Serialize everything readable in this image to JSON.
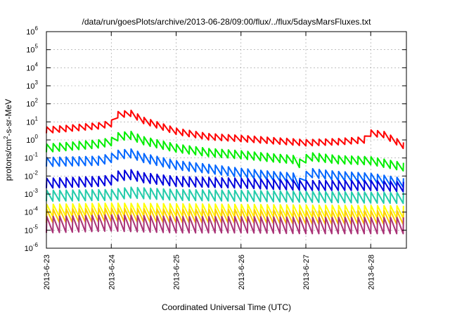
{
  "chart_data": {
    "type": "line",
    "title": "/data/run/goesPlots/archive/2013-06-28/09:00/flux/../flux/5daysMarsFluxes.txt",
    "xlabel": "Coordinated Universal Time (UTC)",
    "ylabel": "protons/cm²-s-sr-MeV",
    "ylabel_base": "protons/cm",
    "ylabel_sup": "2",
    "ylabel_rest": "-s-sr-MeV",
    "y_scale": "log",
    "ylim": [
      1e-06,
      1000000.0
    ],
    "xlim_days": [
      0,
      5.55
    ],
    "y_ticks": [
      {
        "value": -6,
        "base": "10",
        "exp": "-6"
      },
      {
        "value": -5,
        "base": "10",
        "exp": "-5"
      },
      {
        "value": -4,
        "base": "10",
        "exp": "-4"
      },
      {
        "value": -3,
        "base": "10",
        "exp": "-3"
      },
      {
        "value": -2,
        "base": "10",
        "exp": "-2"
      },
      {
        "value": -1,
        "base": "10",
        "exp": "-1"
      },
      {
        "value": 0,
        "base": "10",
        "exp": "0"
      },
      {
        "value": 1,
        "base": "10",
        "exp": "1"
      },
      {
        "value": 2,
        "base": "10",
        "exp": "2"
      },
      {
        "value": 3,
        "base": "10",
        "exp": "3"
      },
      {
        "value": 4,
        "base": "10",
        "exp": "4"
      },
      {
        "value": 5,
        "base": "10",
        "exp": "5"
      },
      {
        "value": 6,
        "base": "10",
        "exp": "6"
      }
    ],
    "x_ticks": [
      {
        "day": 0,
        "label": "2013-6-23"
      },
      {
        "day": 1,
        "label": "2013-6-24"
      },
      {
        "day": 2,
        "label": "2013-6-25"
      },
      {
        "day": 3,
        "label": "2013-6-26"
      },
      {
        "day": 4,
        "label": "2013-6-27"
      },
      {
        "day": 5,
        "label": "2013-6-28"
      }
    ],
    "grid": true,
    "series": [
      {
        "color": "#ff0000",
        "sawtooth_amplitude_decades": 0.35,
        "baseline": [
          [
            0,
            3.5
          ],
          [
            0.8,
            6
          ],
          [
            1.0,
            8
          ],
          [
            1.1,
            25
          ],
          [
            1.3,
            30
          ],
          [
            1.5,
            12
          ],
          [
            2.0,
            3
          ],
          [
            2.5,
            1.5
          ],
          [
            3.0,
            1.2
          ],
          [
            3.5,
            0.9
          ],
          [
            4.0,
            0.7
          ],
          [
            4.5,
            0.8
          ],
          [
            4.9,
            1.0
          ],
          [
            4.95,
            2.5
          ],
          [
            5.2,
            2.0
          ],
          [
            5.55,
            0.4
          ]
        ]
      },
      {
        "color": "#00ee00",
        "sawtooth_amplitude_decades": 0.45,
        "baseline": [
          [
            0,
            0.35
          ],
          [
            0.8,
            0.6
          ],
          [
            1.0,
            0.8
          ],
          [
            1.1,
            1.5
          ],
          [
            1.3,
            1.8
          ],
          [
            1.5,
            0.9
          ],
          [
            2.0,
            0.35
          ],
          [
            2.5,
            0.2
          ],
          [
            3.0,
            0.15
          ],
          [
            3.5,
            0.1
          ],
          [
            3.85,
            0.08
          ],
          [
            3.9,
            0.05
          ],
          [
            4.05,
            0.12
          ],
          [
            4.5,
            0.08
          ],
          [
            5.0,
            0.07
          ],
          [
            5.55,
            0.03
          ]
        ]
      },
      {
        "color": "#0066ff",
        "sawtooth_amplitude_decades": 0.5,
        "baseline": [
          [
            0,
            0.06
          ],
          [
            0.8,
            0.07
          ],
          [
            1.0,
            0.1
          ],
          [
            1.1,
            0.15
          ],
          [
            1.3,
            0.18
          ],
          [
            1.5,
            0.1
          ],
          [
            2.0,
            0.04
          ],
          [
            2.5,
            0.025
          ],
          [
            3.0,
            0.015
          ],
          [
            3.5,
            0.01
          ],
          [
            3.85,
            0.008
          ],
          [
            3.9,
            0.004
          ],
          [
            4.05,
            0.015
          ],
          [
            4.5,
            0.01
          ],
          [
            5.0,
            0.008
          ],
          [
            5.55,
            0.004
          ]
        ]
      },
      {
        "color": "#0000dd",
        "sawtooth_amplitude_decades": 0.55,
        "baseline": [
          [
            0,
            0.004
          ],
          [
            0.8,
            0.005
          ],
          [
            1.0,
            0.006
          ],
          [
            1.1,
            0.01
          ],
          [
            1.3,
            0.012
          ],
          [
            1.5,
            0.008
          ],
          [
            2.0,
            0.005
          ],
          [
            3.0,
            0.004
          ],
          [
            4.0,
            0.003
          ],
          [
            5.0,
            0.003
          ],
          [
            5.55,
            0.0025
          ]
        ]
      },
      {
        "color": "#22ccaa",
        "sawtooth_amplitude_decades": 0.6,
        "baseline": [
          [
            0,
            0.0008
          ],
          [
            1.0,
            0.0009
          ],
          [
            1.3,
            0.0012
          ],
          [
            2.0,
            0.0009
          ],
          [
            3.0,
            0.0008
          ],
          [
            4.0,
            0.0007
          ],
          [
            5.55,
            0.0006
          ]
        ]
      },
      {
        "color": "#ffff00",
        "sawtooth_amplitude_decades": 0.7,
        "baseline": [
          [
            0,
            0.00012
          ],
          [
            1.0,
            0.00014
          ],
          [
            2.0,
            0.00013
          ],
          [
            3.0,
            0.00012
          ],
          [
            4.0,
            0.00011
          ],
          [
            5.55,
            0.0001
          ]
        ]
      },
      {
        "color": "#ffcc00",
        "sawtooth_amplitude_decades": 0.75,
        "baseline": [
          [
            0,
            6e-05
          ],
          [
            1.0,
            7e-05
          ],
          [
            2.0,
            6e-05
          ],
          [
            3.0,
            6e-05
          ],
          [
            4.0,
            5e-05
          ],
          [
            5.55,
            5e-05
          ]
        ]
      },
      {
        "color": "#aa3377",
        "sawtooth_amplitude_decades": 0.9,
        "baseline": [
          [
            0,
            2e-05
          ],
          [
            1.0,
            2.5e-05
          ],
          [
            2.0,
            2e-05
          ],
          [
            3.0,
            2e-05
          ],
          [
            4.0,
            1.8e-05
          ],
          [
            5.55,
            1.8e-05
          ]
        ]
      }
    ],
    "sawtooth_period_days": 0.1
  }
}
